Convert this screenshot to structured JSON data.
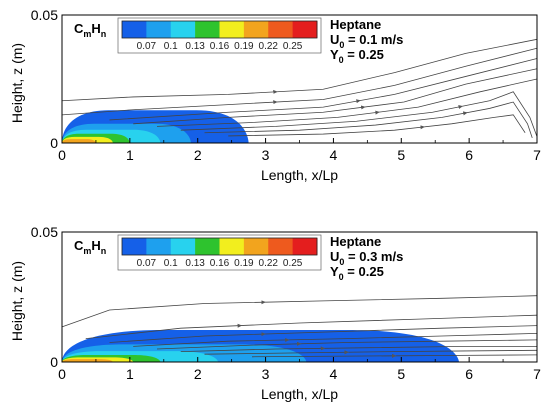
{
  "chart_data": [
    {
      "type": "contour",
      "species_label": {
        "base": "C",
        "sub1": "m",
        "mid": "H",
        "sub2": "n"
      },
      "fuel": "Heptane",
      "velocity": {
        "base": "U",
        "sub": "0",
        "rest": " = 0.1 m/s"
      },
      "mass_fraction": {
        "base": "Y",
        "sub": "0",
        "rest": " = 0.25"
      },
      "xlabel": "Length, x/Lp",
      "ylabel": "Height, z (m)",
      "xlim": [
        0,
        7
      ],
      "ylim": [
        0,
        0.05
      ],
      "x_ticks": [
        "0",
        "1",
        "2",
        "3",
        "4",
        "5",
        "6",
        "7"
      ],
      "y_ticks": [
        "0",
        "0.05"
      ],
      "colorbar": {
        "levels": [
          "0.07",
          "0.1",
          "0.13",
          "0.16",
          "0.19",
          "0.22",
          "0.25"
        ],
        "colors": [
          "#1560e8",
          "#1ea0ee",
          "#28d2ee",
          "#2ec32e",
          "#f2ee1e",
          "#f2a41e",
          "#ee5a1e",
          "#e41e1e"
        ]
      },
      "plume": {
        "outer_x_extent": 2.75,
        "outer_height": 0.0128,
        "bands": [
          {
            "level": 0.07,
            "x_extent": 2.75,
            "height": 0.0128
          },
          {
            "level": 0.1,
            "x_extent": 1.9,
            "height": 0.0075
          },
          {
            "level": 0.13,
            "x_extent": 1.45,
            "height": 0.0052
          },
          {
            "level": 0.16,
            "x_extent": 1.0,
            "height": 0.0036
          },
          {
            "level": 0.19,
            "x_extent": 0.75,
            "height": 0.0024
          },
          {
            "level": 0.22,
            "x_extent": 0.5,
            "height": 0.0015
          }
        ]
      }
    },
    {
      "type": "contour",
      "species_label": {
        "base": "C",
        "sub1": "m",
        "mid": "H",
        "sub2": "n"
      },
      "fuel": "Heptane",
      "velocity": {
        "base": "U",
        "sub": "0",
        "rest": " = 0.3 m/s"
      },
      "mass_fraction": {
        "base": "Y",
        "sub": "0",
        "rest": " = 0.25"
      },
      "xlabel": "Length, x/Lp",
      "ylabel": "Height, z (m)",
      "xlim": [
        0,
        7
      ],
      "ylim": [
        0,
        0.05
      ],
      "x_ticks": [
        "0",
        "1",
        "2",
        "3",
        "4",
        "5",
        "6",
        "7"
      ],
      "y_ticks": [
        "0",
        "0.05"
      ],
      "colorbar": {
        "levels": [
          "0.07",
          "0.1",
          "0.13",
          "0.16",
          "0.19",
          "0.22",
          "0.25"
        ],
        "colors": [
          "#1560e8",
          "#1ea0ee",
          "#28d2ee",
          "#2ec32e",
          "#f2ee1e",
          "#f2a41e",
          "#ee5a1e",
          "#e41e1e"
        ]
      },
      "plume": {
        "outer_x_extent": 5.85,
        "outer_height": 0.0123,
        "bands": [
          {
            "level": 0.07,
            "x_extent": 5.85,
            "height": 0.0123
          },
          {
            "level": 0.1,
            "x_extent": 3.6,
            "height": 0.0068
          },
          {
            "level": 0.13,
            "x_extent": 2.3,
            "height": 0.0042
          },
          {
            "level": 0.16,
            "x_extent": 1.45,
            "height": 0.0027
          },
          {
            "level": 0.19,
            "x_extent": 1.05,
            "height": 0.0018
          },
          {
            "level": 0.22,
            "x_extent": 0.75,
            "height": 0.0011
          }
        ]
      }
    }
  ]
}
